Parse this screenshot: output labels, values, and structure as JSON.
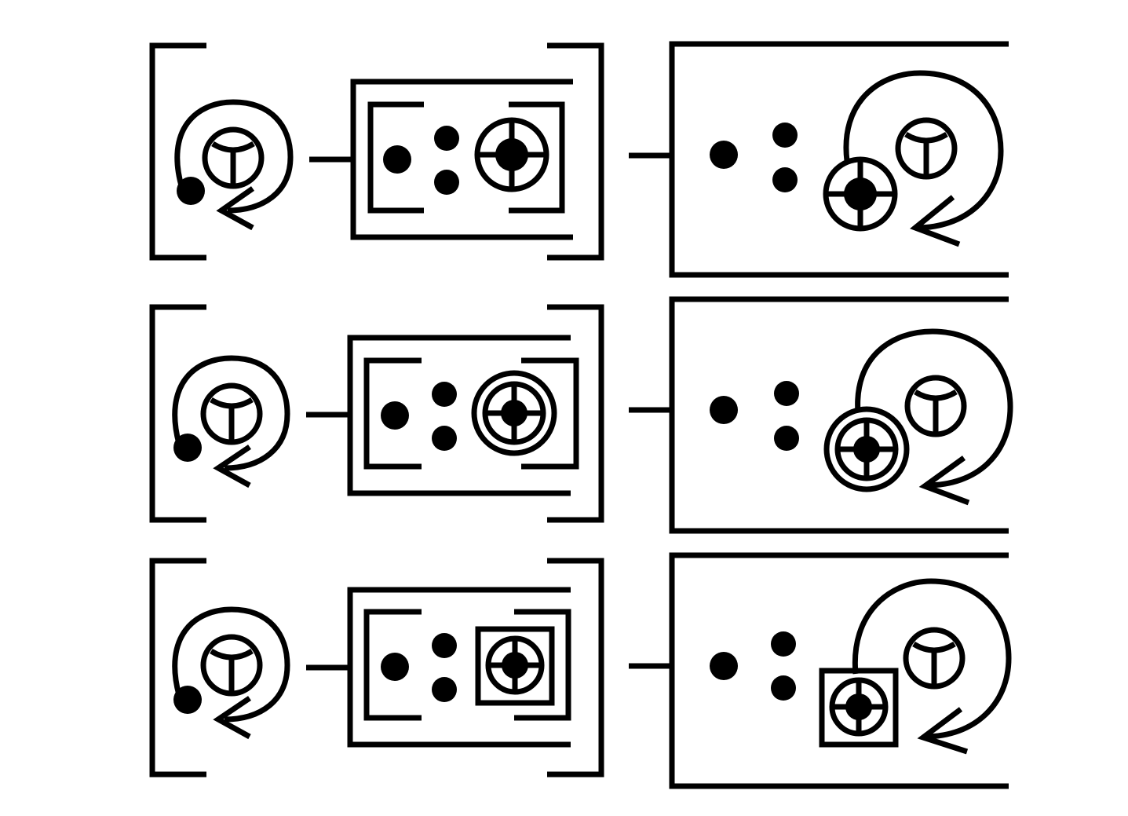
{
  "diagram": {
    "description_free": true,
    "rows": [
      {
        "id": "row-1",
        "target_style": "plain"
      },
      {
        "id": "row-2",
        "target_style": "double-ring"
      },
      {
        "id": "row-3",
        "target_style": "boxed"
      }
    ],
    "colors": {
      "ink": "#000000",
      "background": "#ffffff"
    },
    "icons": [
      "cycle-arrow-icon",
      "y-glyph-icon",
      "crosshair-target-icon",
      "dot-icon"
    ]
  }
}
